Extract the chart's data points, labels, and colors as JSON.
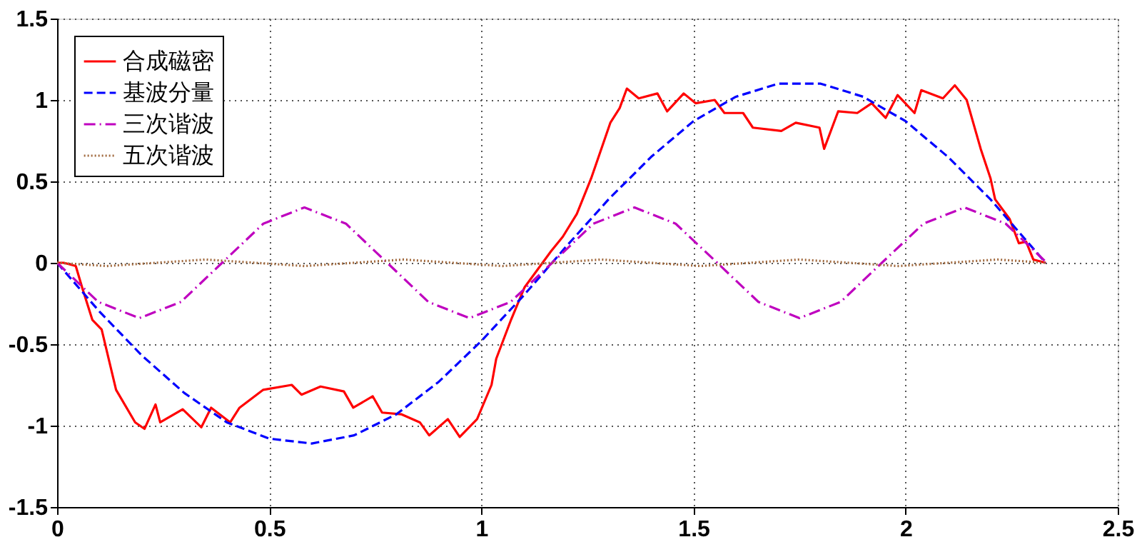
{
  "chart_data": {
    "type": "line",
    "xlim": [
      0,
      2.5
    ],
    "xticks": [
      0,
      0.5,
      1,
      1.5,
      2,
      2.5
    ],
    "ylim": [
      -1.5,
      1.5
    ],
    "yticks": [
      -1.5,
      -1,
      -0.5,
      0,
      0.5,
      1,
      1.5
    ],
    "grid": true,
    "legend": "top left",
    "marker": "none",
    "series": [
      {
        "name": "合成磁密",
        "color": "#ff0000",
        "line_style": "solid",
        "x": [
          0,
          0.016,
          0.044,
          0.06,
          0.083,
          0.105,
          0.139,
          0.184,
          0.206,
          0.232,
          0.243,
          0.296,
          0.34,
          0.363,
          0.408,
          0.43,
          0.486,
          0.553,
          0.576,
          0.621,
          0.676,
          0.698,
          0.744,
          0.766,
          0.811,
          0.855,
          0.877,
          0.921,
          0.949,
          0.99,
          1.024,
          1.035,
          1.07,
          1.102,
          1.164,
          1.192,
          1.225,
          1.259,
          1.304,
          1.326,
          1.343,
          1.371,
          1.415,
          1.438,
          1.477,
          1.505,
          1.55,
          1.573,
          1.617,
          1.64,
          1.707,
          1.741,
          1.797,
          1.808,
          1.841,
          1.886,
          1.92,
          1.953,
          1.981,
          2.021,
          2.037,
          2.088,
          2.116,
          2.144,
          2.177,
          2.2,
          2.211,
          2.245,
          2.267,
          2.284,
          2.301,
          2.33
        ],
        "values": [
          0,
          0,
          -0.02,
          -0.16,
          -0.35,
          -0.41,
          -0.78,
          -0.98,
          -1.02,
          -0.87,
          -0.98,
          -0.9,
          -1.01,
          -0.89,
          -0.98,
          -0.89,
          -0.78,
          -0.75,
          -0.81,
          -0.76,
          -0.79,
          -0.89,
          -0.82,
          -0.92,
          -0.93,
          -0.98,
          -1.06,
          -0.96,
          -1.07,
          -0.96,
          -0.75,
          -0.59,
          -0.35,
          -0.15,
          0.07,
          0.16,
          0.3,
          0.52,
          0.86,
          0.95,
          1.07,
          1.01,
          1.04,
          0.93,
          1.04,
          0.98,
          1.0,
          0.92,
          0.92,
          0.83,
          0.81,
          0.86,
          0.83,
          0.7,
          0.93,
          0.92,
          0.98,
          0.89,
          1.03,
          0.92,
          1.06,
          1.01,
          1.09,
          1.0,
          0.7,
          0.52,
          0.39,
          0.27,
          0.12,
          0.13,
          0.02,
          0
        ]
      },
      {
        "name": "基波分量",
        "color": "#0000ff",
        "line_style": "dashed",
        "x": [
          0,
          0.1,
          0.2,
          0.3,
          0.4,
          0.5,
          0.6,
          0.7,
          0.8,
          0.9,
          1.0,
          1.1,
          1.2,
          1.3,
          1.4,
          1.5,
          1.6,
          1.7,
          1.8,
          1.9,
          2.0,
          2.1,
          2.2,
          2.33
        ],
        "values": [
          0,
          -0.3,
          -0.57,
          -0.8,
          -0.98,
          -1.08,
          -1.11,
          -1.06,
          -0.93,
          -0.73,
          -0.48,
          -0.2,
          0.1,
          0.39,
          0.65,
          0.87,
          1.02,
          1.1,
          1.1,
          1.02,
          0.87,
          0.65,
          0.39,
          0
        ]
      },
      {
        "name": "三次谐波",
        "color": "#bf00bf",
        "line_style": "dashdot",
        "x": [
          0,
          0.097,
          0.194,
          0.292,
          0.389,
          0.486,
          0.583,
          0.681,
          0.778,
          0.875,
          0.972,
          1.069,
          1.167,
          1.264,
          1.361,
          1.458,
          1.556,
          1.653,
          1.75,
          1.847,
          1.944,
          2.042,
          2.139,
          2.236,
          2.333
        ],
        "values": [
          0,
          -0.24,
          -0.34,
          -0.24,
          0,
          0.24,
          0.34,
          0.24,
          0,
          -0.24,
          -0.34,
          -0.24,
          0,
          0.24,
          0.34,
          0.24,
          0,
          -0.24,
          -0.34,
          -0.24,
          0,
          0.24,
          0.34,
          0.24,
          0
        ]
      },
      {
        "name": "五次谐波",
        "color": "#a0683c",
        "line_style": "dotted",
        "x": [
          0,
          0.117,
          0.233,
          0.35,
          0.467,
          0.583,
          0.7,
          0.817,
          0.933,
          1.05,
          1.167,
          1.283,
          1.4,
          1.517,
          1.633,
          1.75,
          1.867,
          1.983,
          2.1,
          2.217,
          2.333
        ],
        "values": [
          0,
          -0.02,
          0,
          0.02,
          0,
          -0.02,
          0,
          0.02,
          0,
          -0.02,
          0,
          0.02,
          0,
          -0.02,
          0,
          0.02,
          0,
          -0.02,
          0,
          0.02,
          0
        ]
      }
    ]
  }
}
